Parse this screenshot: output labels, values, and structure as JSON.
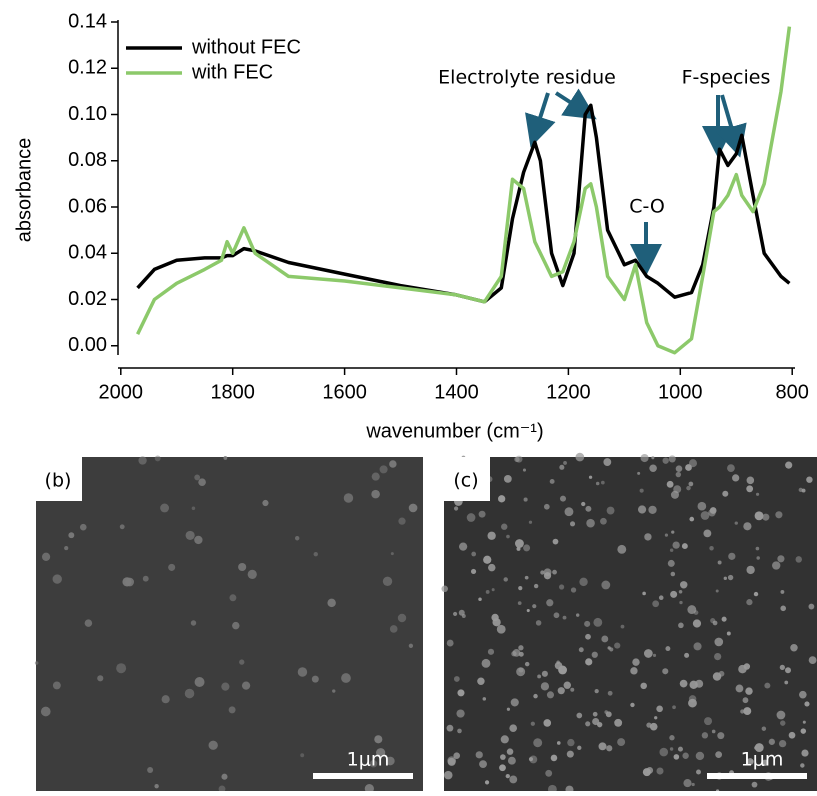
{
  "chart_data": {
    "type": "line",
    "x_label": "wavenumber (cm⁻¹)",
    "y_label": "absorbance",
    "x": [
      1970,
      1940,
      1900,
      1850,
      1820,
      1810,
      1800,
      1780,
      1760,
      1700,
      1600,
      1500,
      1400,
      1350,
      1320,
      1300,
      1280,
      1260,
      1250,
      1230,
      1210,
      1190,
      1170,
      1160,
      1150,
      1130,
      1100,
      1080,
      1060,
      1040,
      1010,
      980,
      960,
      940,
      930,
      915,
      900,
      890,
      870,
      850,
      820,
      805
    ],
    "series": [
      {
        "name": "without FEC",
        "color": "#000000",
        "values": [
          0.025,
          0.033,
          0.037,
          0.038,
          0.038,
          0.039,
          0.039,
          0.042,
          0.041,
          0.036,
          0.031,
          0.026,
          0.022,
          0.019,
          0.025,
          0.055,
          0.075,
          0.088,
          0.08,
          0.04,
          0.026,
          0.04,
          0.1,
          0.104,
          0.09,
          0.05,
          0.035,
          0.037,
          0.03,
          0.027,
          0.021,
          0.023,
          0.035,
          0.06,
          0.085,
          0.078,
          0.083,
          0.091,
          0.065,
          0.04,
          0.03,
          0.027
        ]
      },
      {
        "name": "with FEC",
        "color": "#8cc96a",
        "values": [
          0.005,
          0.02,
          0.027,
          0.033,
          0.037,
          0.045,
          0.04,
          0.051,
          0.04,
          0.03,
          0.028,
          0.025,
          0.022,
          0.019,
          0.03,
          0.072,
          0.068,
          0.045,
          0.04,
          0.03,
          0.032,
          0.045,
          0.068,
          0.07,
          0.06,
          0.03,
          0.02,
          0.035,
          0.01,
          0.0,
          -0.003,
          0.003,
          0.03,
          0.058,
          0.06,
          0.065,
          0.074,
          0.065,
          0.058,
          0.07,
          0.11,
          0.138
        ]
      }
    ],
    "xlim": [
      2005,
      795
    ],
    "xticks": [
      2000,
      1800,
      1600,
      1400,
      1200,
      1000,
      800
    ],
    "ylim": [
      -0.004,
      0.14
    ],
    "yticks": [
      {
        "value": 0,
        "label": "0.00"
      },
      0.02,
      0.04,
      0.06,
      0.08,
      {
        "value": 0.1,
        "label": "0.10"
      },
      0.12,
      0.14
    ],
    "legend": "upper left",
    "annotations": [
      "Electrolyte residue",
      "C-O",
      "F-species"
    ]
  },
  "images": [
    {
      "label": "(b)",
      "scale_bar": "1μm"
    },
    {
      "label": "(c)",
      "scale_bar": "1μm"
    }
  ]
}
